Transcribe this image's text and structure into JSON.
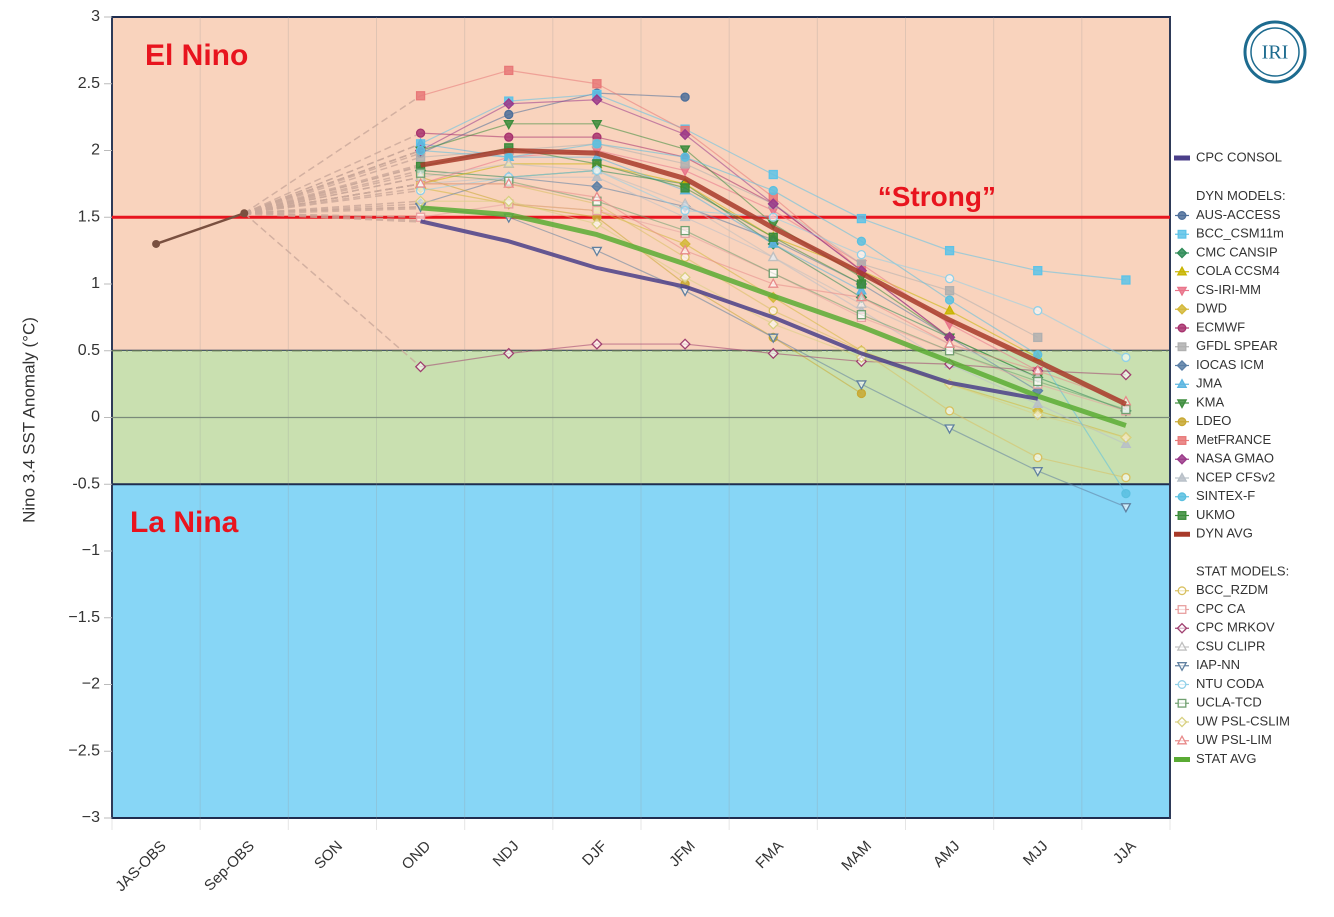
{
  "chart_data": {
    "type": "line",
    "logo": "IRI",
    "ylabel": "Nino 3.4 SST Anomaly (°C)",
    "categories": [
      "JAS-OBS",
      "Sep-OBS",
      "SON",
      "OND",
      "NDJ",
      "DJF",
      "JFM",
      "FMA",
      "MAM",
      "AMJ",
      "MJJ",
      "JJA"
    ],
    "ylim": [
      -3,
      3
    ],
    "yticks": [
      {
        "value": -3,
        "label": "−3"
      },
      {
        "value": -2.5,
        "label": "−2.5"
      },
      {
        "value": -2,
        "label": "−2"
      },
      {
        "value": -1.5,
        "label": "−1.5"
      },
      {
        "value": -1,
        "label": "−1"
      },
      -0.5,
      0,
      0.5,
      1,
      1.5,
      2,
      2.5,
      3
    ],
    "regions": [
      {
        "from": 0.5,
        "to": 3,
        "color": "#f9d3bd"
      },
      {
        "from": -0.5,
        "to": 0.5,
        "color": "#c9e0b0"
      },
      {
        "from": -3,
        "to": -0.5,
        "color": "#87d6f6"
      }
    ],
    "reference_lines": [
      {
        "value": 1.5,
        "color": "#e8141e",
        "style": "solid"
      },
      {
        "value": 0.5,
        "color": "#6a7a5a",
        "style": "dashdot"
      },
      {
        "value": 0,
        "color": "#7a8a7a",
        "style": "solid"
      }
    ],
    "annotations": [
      {
        "text": "El Nino",
        "x": 3,
        "y": 2.7
      },
      {
        "text": "La Nina",
        "x": 3,
        "y": -0.8
      },
      {
        "text": "“Strong”",
        "x": 10,
        "y": 1.64
      }
    ],
    "observed": {
      "color": "#7a5040",
      "values": [
        1.3,
        1.53,
        null,
        null,
        null,
        null,
        null,
        null,
        null,
        null,
        null,
        null
      ]
    },
    "consol": {
      "name": "CPC CONSOL",
      "color": "#4b3f8a",
      "marker": null,
      "values": [
        null,
        null,
        null,
        1.47,
        1.32,
        1.12,
        0.98,
        0.75,
        0.48,
        0.26,
        0.14,
        null
      ]
    },
    "groups": [
      {
        "title": "DYN MODELS:",
        "series": [
          {
            "name": "AUS-ACCESS",
            "color": "#4e6f9a",
            "marker": "circle",
            "filled": true,
            "values": [
              null,
              null,
              null,
              1.98,
              2.27,
              2.43,
              2.4,
              null,
              null,
              null,
              null,
              null
            ]
          },
          {
            "name": "BCC_CSM11m",
            "color": "#5ec3e8",
            "marker": "square",
            "filled": true,
            "values": [
              null,
              null,
              null,
              2.05,
              2.37,
              2.42,
              2.16,
              1.82,
              1.49,
              1.25,
              1.1,
              1.03
            ]
          },
          {
            "name": "CMC CANSIP",
            "color": "#2e8b57",
            "marker": "diamond",
            "filled": true,
            "values": [
              null,
              null,
              null,
              1.85,
              1.8,
              1.85,
              1.75,
              1.3,
              0.9,
              0.6,
              0.3,
              0.05
            ]
          },
          {
            "name": "COLA CCSM4",
            "color": "#c8b400",
            "marker": "triangle",
            "filled": true,
            "values": [
              null,
              null,
              null,
              1.75,
              1.9,
              1.9,
              1.75,
              1.35,
              1.1,
              0.8,
              0.45,
              null
            ]
          },
          {
            "name": "CS-IRI-MM",
            "color": "#e9748a",
            "marker": "triangle-down",
            "filled": true,
            "values": [
              null,
              null,
              null,
              1.75,
              1.95,
              2.0,
              1.85,
              1.55,
              1.15,
              0.7,
              0.35,
              null
            ]
          },
          {
            "name": "DWD",
            "color": "#d4b83a",
            "marker": "diamond",
            "filled": true,
            "values": [
              null,
              null,
              null,
              1.72,
              1.6,
              1.55,
              1.3,
              0.9,
              0.5,
              0.25,
              0.05,
              -0.15
            ]
          },
          {
            "name": "ECMWF",
            "color": "#a8326e",
            "marker": "circle",
            "filled": true,
            "values": [
              null,
              null,
              null,
              2.13,
              2.1,
              2.1,
              1.95,
              1.6,
              1.1,
              0.6,
              null,
              null
            ]
          },
          {
            "name": "GFDL SPEAR",
            "color": "#b0b0b0",
            "marker": "square",
            "filled": true,
            "values": [
              null,
              null,
              null,
              1.95,
              2.0,
              2.05,
              1.9,
              1.6,
              1.15,
              0.95,
              0.6,
              null
            ]
          },
          {
            "name": "IOCAS ICM",
            "color": "#5b7fa6",
            "marker": "diamond",
            "filled": true,
            "values": [
              null,
              null,
              null,
              1.6,
              1.8,
              1.73,
              1.58,
              1.33,
              1.0,
              0.6,
              0.2,
              null
            ]
          },
          {
            "name": "JMA",
            "color": "#5bb5e0",
            "marker": "triangle",
            "filled": true,
            "values": [
              null,
              null,
              null,
              2.05,
              1.95,
              1.95,
              1.7,
              1.3,
              0.95,
              null,
              null,
              null
            ]
          },
          {
            "name": "KMA",
            "color": "#3c8c3c",
            "marker": "triangle-down",
            "filled": true,
            "values": [
              null,
              null,
              null,
              2.0,
              2.2,
              2.2,
              2.01,
              1.45,
              1.05,
              0.6,
              0.3,
              null
            ]
          },
          {
            "name": "LDEO",
            "color": "#c8a832",
            "marker": "circle",
            "filled": true,
            "values": [
              null,
              null,
              null,
              1.8,
              1.6,
              1.5,
              1.0,
              0.6,
              0.18,
              null,
              null,
              null
            ]
          },
          {
            "name": "MetFRANCE",
            "color": "#e87878",
            "marker": "square",
            "filled": true,
            "values": [
              null,
              null,
              null,
              2.41,
              2.6,
              2.5,
              2.15,
              1.65,
              1.1,
              null,
              null,
              null
            ]
          },
          {
            "name": "NASA GMAO",
            "color": "#9b3a8a",
            "marker": "diamond",
            "filled": true,
            "values": [
              null,
              null,
              null,
              2.0,
              2.35,
              2.38,
              2.12,
              1.6,
              1.1,
              0.6,
              null,
              null
            ]
          },
          {
            "name": "NCEP CFSv2",
            "color": "#b8c0c8",
            "marker": "triangle",
            "filled": true,
            "values": [
              null,
              null,
              null,
              1.75,
              1.8,
              1.8,
              1.5,
              1.2,
              0.8,
              0.4,
              0.1,
              -0.2
            ]
          },
          {
            "name": "SINTEX-F",
            "color": "#5bc0e0",
            "marker": "circle",
            "filled": true,
            "values": [
              null,
              null,
              null,
              2.0,
              1.95,
              2.05,
              1.95,
              1.7,
              1.32,
              0.88,
              0.47,
              -0.57
            ]
          },
          {
            "name": "UKMO",
            "color": "#3a8c3a",
            "marker": "square",
            "filled": true,
            "values": [
              null,
              null,
              null,
              1.88,
              2.02,
              1.9,
              1.72,
              1.35,
              1.0,
              null,
              null,
              null
            ]
          },
          {
            "name": "DYN AVG",
            "color": "#a83a2a",
            "marker": null,
            "values": [
              null,
              null,
              null,
              1.89,
              2.0,
              1.98,
              1.79,
              1.42,
              1.08,
              0.73,
              0.42,
              0.1
            ]
          }
        ]
      },
      {
        "title": "STAT MODELS:",
        "series": [
          {
            "name": "BCC_RZDM",
            "color": "#d8c060",
            "marker": "circle",
            "filled": false,
            "values": [
              null,
              null,
              null,
              1.75,
              1.75,
              1.6,
              1.2,
              0.8,
              0.5,
              0.05,
              -0.3,
              -0.45
            ]
          },
          {
            "name": "CPC CA",
            "color": "#e8a0a0",
            "marker": "square",
            "filled": false,
            "values": [
              null,
              null,
              null,
              1.5,
              1.6,
              1.55,
              1.38,
              1.08,
              0.75,
              0.5,
              0.25,
              0.05
            ]
          },
          {
            "name": "CPC MRKOV",
            "color": "#a04070",
            "marker": "diamond",
            "filled": false,
            "values": [
              null,
              null,
              null,
              0.38,
              0.48,
              0.55,
              0.55,
              0.48,
              0.42,
              0.4,
              0.35,
              0.32
            ]
          },
          {
            "name": "CSU CLIPR",
            "color": "#c0c0c0",
            "marker": "triangle",
            "filled": false,
            "values": [
              null,
              null,
              null,
              1.8,
              1.9,
              1.85,
              1.6,
              1.2,
              0.85,
              0.55,
              0.3,
              null
            ]
          },
          {
            "name": "IAP-NN",
            "color": "#6080a0",
            "marker": "triangle-down",
            "filled": false,
            "values": [
              null,
              null,
              null,
              1.58,
              1.5,
              1.25,
              0.95,
              0.6,
              0.25,
              -0.08,
              -0.4,
              -0.67
            ]
          },
          {
            "name": "NTU CODA",
            "color": "#90d0e8",
            "marker": "circle",
            "filled": false,
            "values": [
              null,
              null,
              null,
              1.7,
              1.8,
              1.85,
              1.55,
              1.5,
              1.22,
              1.04,
              0.8,
              0.45
            ]
          },
          {
            "name": "UCLA-TCD",
            "color": "#70a070",
            "marker": "square",
            "filled": false,
            "values": [
              null,
              null,
              null,
              1.83,
              1.77,
              1.62,
              1.4,
              1.08,
              0.77,
              0.5,
              0.27,
              0.06
            ]
          },
          {
            "name": "UW PSL-CSLIM",
            "color": "#d8d080",
            "marker": "diamond",
            "filled": false,
            "values": [
              null,
              null,
              null,
              1.62,
              1.62,
              1.45,
              1.05,
              0.7,
              0.45,
              0.25,
              0.02,
              -0.15
            ]
          },
          {
            "name": "UW PSL-LIM",
            "color": "#e88a8a",
            "marker": "triangle",
            "filled": false,
            "values": [
              null,
              null,
              null,
              1.75,
              1.75,
              1.65,
              1.25,
              1.0,
              0.9,
              0.55,
              0.35,
              0.12
            ]
          },
          {
            "name": "STAT AVG",
            "color": "#5aab34",
            "marker": null,
            "values": [
              null,
              null,
              null,
              1.57,
              1.52,
              1.37,
              1.15,
              0.91,
              0.68,
              0.42,
              0.16,
              -0.06
            ]
          }
        ]
      }
    ]
  }
}
